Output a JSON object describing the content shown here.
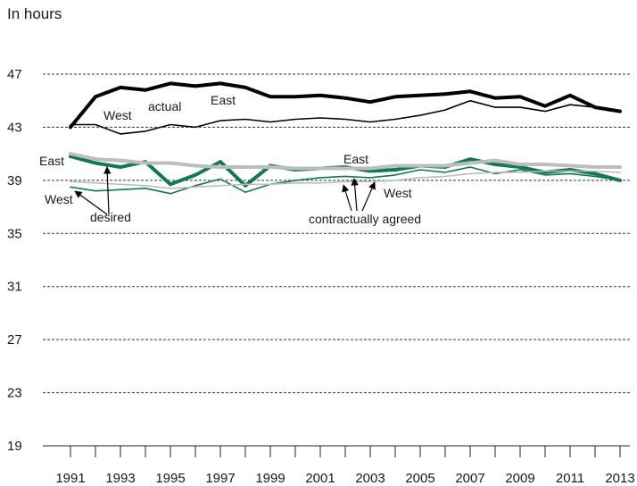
{
  "chart_data": {
    "type": "line",
    "ylabel": "In hours",
    "ylim": [
      19,
      47
    ],
    "yticks": [
      19,
      23,
      27,
      31,
      35,
      39,
      43,
      47
    ],
    "x": [
      1991,
      1992,
      1993,
      1994,
      1995,
      1996,
      1997,
      1998,
      1999,
      2000,
      2001,
      2002,
      2003,
      2004,
      2005,
      2006,
      2007,
      2008,
      2009,
      2010,
      2011,
      2012,
      2013
    ],
    "xtick_labels": [
      "1991",
      "1993",
      "1995",
      "1997",
      "1999",
      "2001",
      "2003",
      "2005",
      "2007",
      "2009",
      "2011",
      "2013"
    ],
    "grid": "horizontal dotted",
    "series": [
      {
        "key": "actual_east",
        "color": "#000000",
        "width": 4,
        "values": [
          43.0,
          45.3,
          46.0,
          45.8,
          46.3,
          46.1,
          46.3,
          46.0,
          45.3,
          45.3,
          45.4,
          45.2,
          44.9,
          45.3,
          45.4,
          45.5,
          45.7,
          45.2,
          45.3,
          44.6,
          45.4,
          44.5,
          44.2
        ]
      },
      {
        "key": "actual_west",
        "color": "#000000",
        "width": 1.6,
        "values": [
          43.2,
          43.2,
          42.5,
          42.7,
          43.2,
          43.0,
          43.5,
          43.6,
          43.4,
          43.6,
          43.7,
          43.6,
          43.4,
          43.6,
          43.9,
          44.3,
          45.0,
          44.5,
          44.5,
          44.2,
          44.7,
          44.5,
          44.2
        ]
      },
      {
        "key": "desired_east",
        "color": "#0e7a52",
        "width": 4,
        "values": [
          40.8,
          40.3,
          40.0,
          40.4,
          38.7,
          39.4,
          40.4,
          38.6,
          40.1,
          39.8,
          39.9,
          40.0,
          39.7,
          39.8,
          40.1,
          40.0,
          40.6,
          40.2,
          40.0,
          39.6,
          39.8,
          39.5,
          39.0
        ]
      },
      {
        "key": "desired_west",
        "color": "#0e7a52",
        "width": 1.6,
        "values": [
          38.5,
          38.2,
          38.3,
          38.4,
          38.0,
          38.6,
          39.1,
          38.1,
          38.7,
          39.0,
          39.2,
          39.3,
          39.2,
          39.4,
          39.8,
          39.6,
          40.0,
          39.5,
          39.8,
          39.4,
          39.5,
          39.3,
          39.0
        ]
      },
      {
        "key": "contract_east",
        "color": "#bdbdbd",
        "width": 4,
        "values": [
          41.0,
          40.6,
          40.5,
          40.3,
          40.3,
          40.1,
          40.0,
          40.0,
          40.0,
          39.9,
          39.9,
          39.9,
          39.9,
          40.1,
          40.1,
          40.1,
          40.3,
          40.5,
          40.2,
          40.2,
          40.1,
          40.0,
          40.0
        ]
      },
      {
        "key": "contract_west",
        "color": "#bdbdbd",
        "width": 1.6,
        "values": [
          38.9,
          38.8,
          38.7,
          38.6,
          38.4,
          38.5,
          38.6,
          38.7,
          38.7,
          38.8,
          38.8,
          38.9,
          38.9,
          39.0,
          39.2,
          39.3,
          39.5,
          39.6,
          39.6,
          39.7,
          39.7,
          39.7,
          39.6
        ]
      }
    ],
    "annotations": {
      "actual": "actual",
      "east_actual": "East",
      "west_actual": "West",
      "east_left": "East",
      "west_left": "West",
      "desired": "desired",
      "east_contract": "East",
      "west_contract": "West",
      "contract": "contractually agreed"
    }
  }
}
